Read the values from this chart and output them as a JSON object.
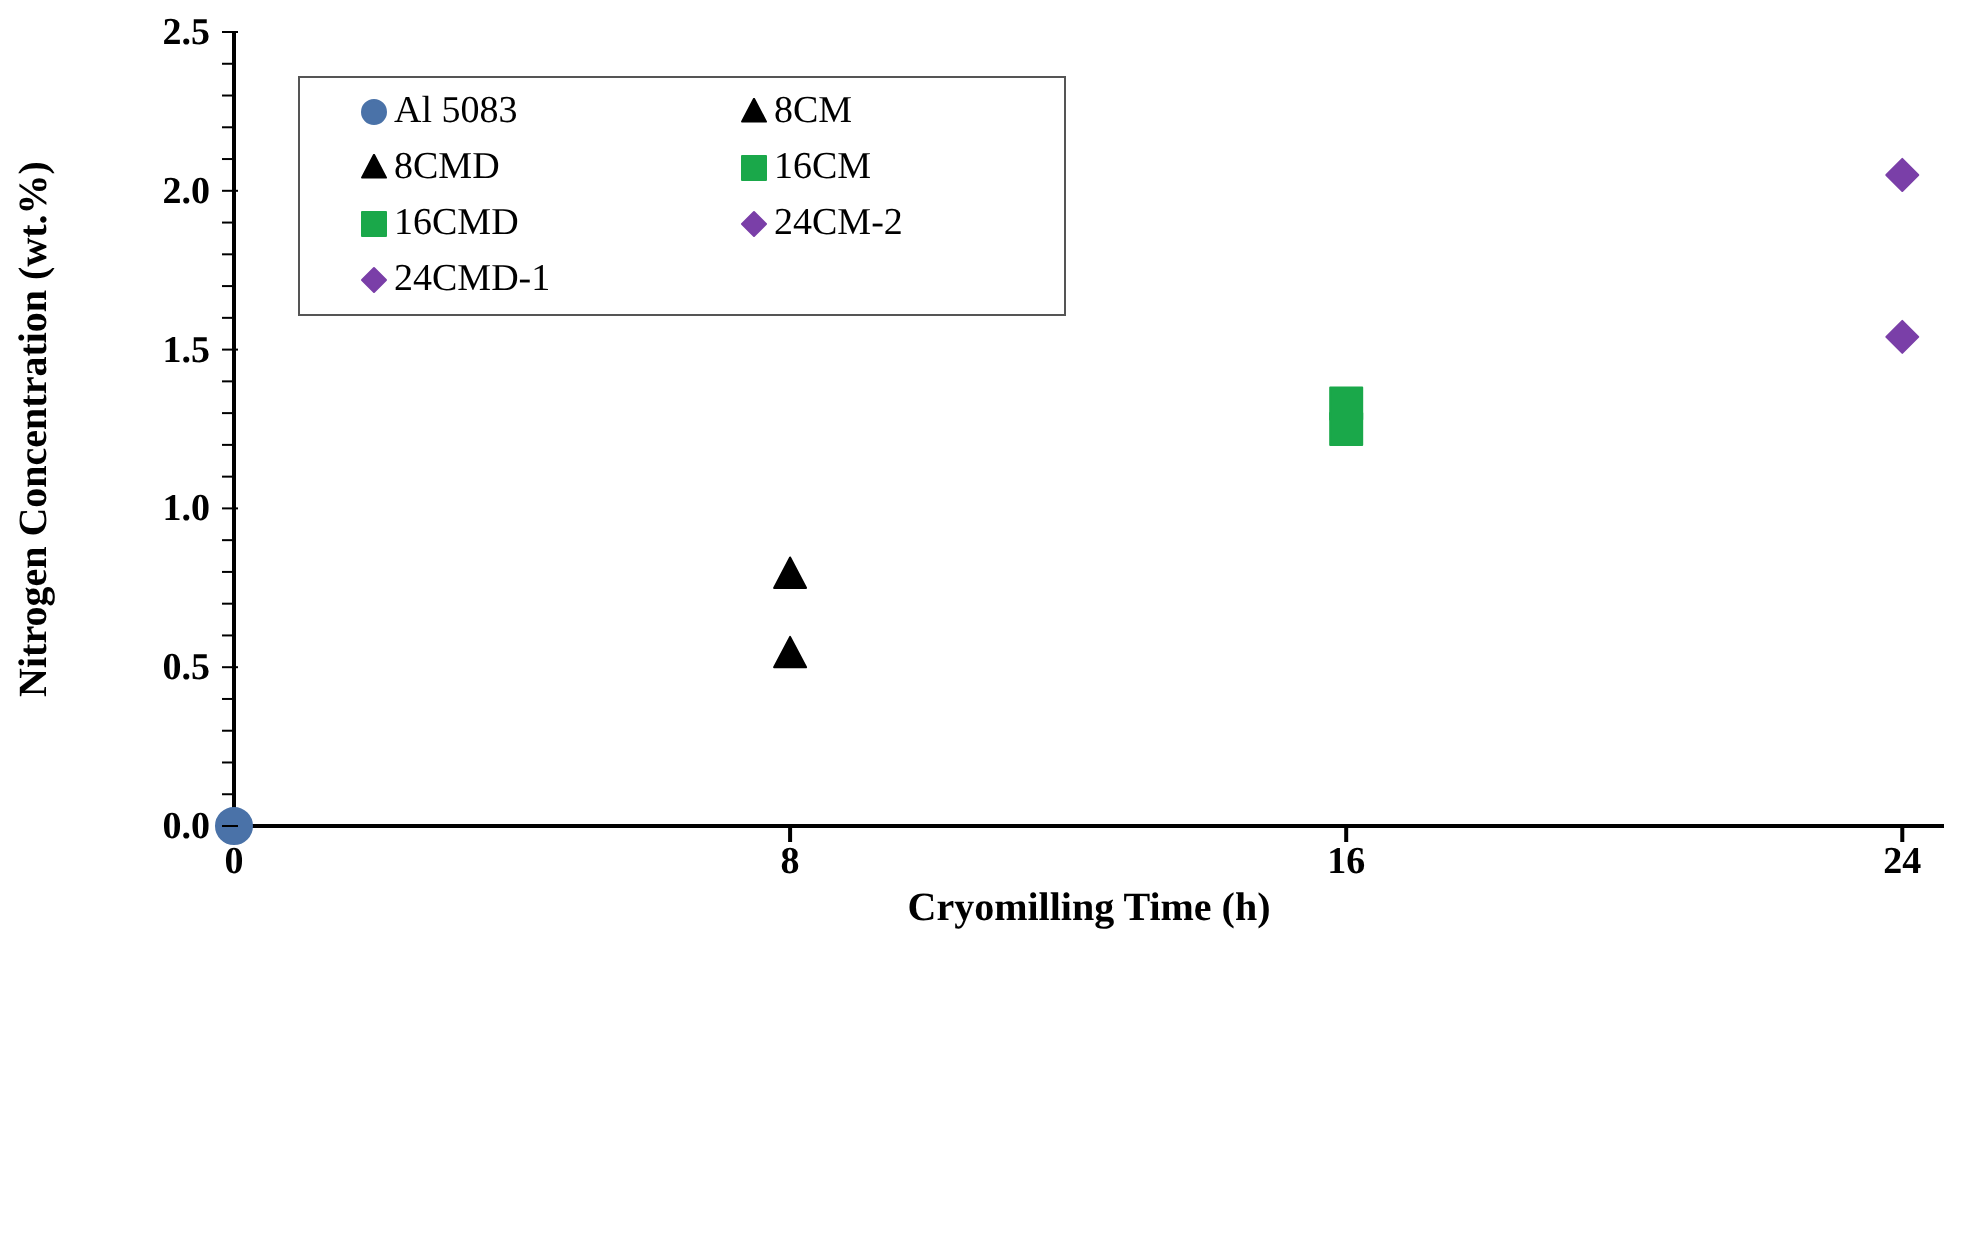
{
  "chart_data": {
    "type": "scatter",
    "xlabel": "Cryomilling Time (h)",
    "ylabel": "Nitrogen Concentration (wt.%)",
    "xlim": [
      0,
      24.6
    ],
    "xticks": [
      0,
      8,
      16,
      24
    ],
    "ylim": [
      0,
      2.5
    ],
    "yticks": [
      {
        "value": 0,
        "label": "0.0"
      },
      {
        "value": 0.1,
        "label": null
      },
      {
        "value": 0.2,
        "label": null
      },
      {
        "value": 0.3,
        "label": null
      },
      {
        "value": 0.4,
        "label": null
      },
      {
        "value": 0.5,
        "label": "0.5"
      },
      {
        "value": 0.6,
        "label": null
      },
      {
        "value": 0.7,
        "label": null
      },
      {
        "value": 0.8,
        "label": null
      },
      {
        "value": 0.9,
        "label": null
      },
      {
        "value": 1,
        "label": "1.0"
      },
      {
        "value": 1.1,
        "label": null
      },
      {
        "value": 1.2,
        "label": null
      },
      {
        "value": 1.3,
        "label": null
      },
      {
        "value": 1.4,
        "label": null
      },
      {
        "value": 1.5,
        "label": "1.5"
      },
      {
        "value": 1.6,
        "label": null
      },
      {
        "value": 1.7,
        "label": null
      },
      {
        "value": 1.8,
        "label": null
      },
      {
        "value": 1.9,
        "label": null
      },
      {
        "value": 2,
        "label": "2.0"
      },
      {
        "value": 2.1,
        "label": null
      },
      {
        "value": 2.2,
        "label": null
      },
      {
        "value": 2.3,
        "label": null
      },
      {
        "value": 2.4,
        "label": null
      },
      {
        "value": 2.5,
        "label": "2.5"
      }
    ],
    "legend": "top left",
    "series": [
      {
        "name": "Al 5083",
        "color": "#4a72a8",
        "marker": "circle",
        "x": [
          0
        ],
        "values": [
          0
        ]
      },
      {
        "name": "8CM",
        "color": "#000000",
        "marker": "triangle",
        "x": [
          8
        ],
        "values": [
          0.54
        ]
      },
      {
        "name": "8CMD",
        "color": "#000000",
        "marker": "triangle",
        "x": [
          8
        ],
        "values": [
          0.79
        ]
      },
      {
        "name": "16CM",
        "color": "#1aa84a",
        "marker": "square",
        "x": [
          16
        ],
        "values": [
          1.25
        ]
      },
      {
        "name": "16CMD",
        "color": "#1aa84a",
        "marker": "square",
        "x": [
          16
        ],
        "values": [
          1.33
        ]
      },
      {
        "name": "24CM-2",
        "color": "#7a3fa8",
        "marker": "diamond",
        "x": [
          24
        ],
        "values": [
          1.54
        ]
      },
      {
        "name": "24CMD-1",
        "color": "#7a3fa8",
        "marker": "diamond",
        "x": [
          24
        ],
        "values": [
          2.05
        ]
      }
    ]
  }
}
